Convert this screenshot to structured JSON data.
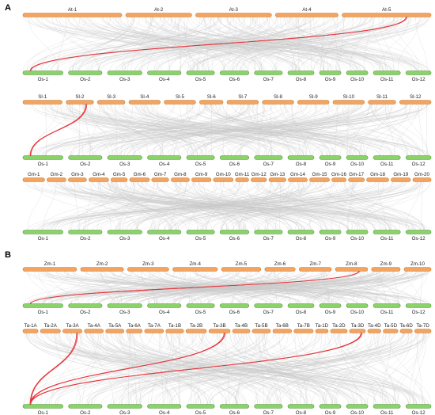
{
  "colors": {
    "query_chromosome": "#F4A460",
    "query_stroke": "#C77A2E",
    "reference_chromosome": "#8CD26A",
    "reference_stroke": "#4E9A32",
    "background_links": "#C8C8C8",
    "highlight_links": "#E8333A"
  },
  "panels": [
    {
      "letter": "A",
      "blocks": [
        {
          "query_genome": "At",
          "query_chromosomes": [
            "At-1",
            "At-2",
            "At-3",
            "At-4",
            "At-5"
          ],
          "reference_chromosomes": [
            "Os-1",
            "Os-2",
            "Os-3",
            "Os-4",
            "Os-5",
            "Os-6",
            "Os-7",
            "Os-8",
            "Os-9",
            "Os-10",
            "Os-11",
            "Os-12"
          ],
          "highlight_links": [
            {
              "from": "At-5",
              "to": "Os-1"
            }
          ]
        },
        {
          "query_genome": "Sl",
          "query_chromosomes": [
            "Sl-1",
            "Sl-2",
            "Sl-3",
            "Sl-4",
            "Sl-5",
            "Sl-6",
            "Sl-7",
            "Sl-8",
            "Sl-9",
            "Sl-10",
            "Sl-11",
            "Sl-12"
          ],
          "reference_chromosomes": [
            "Os-1",
            "Os-2",
            "Os-3",
            "Os-4",
            "Os-5",
            "Os-6",
            "Os-7",
            "Os-8",
            "Os-9",
            "Os-10",
            "Os-11",
            "Os-12"
          ],
          "highlight_links": [
            {
              "from": "Sl-2",
              "to": "Os-1"
            }
          ]
        },
        {
          "query_genome": "Gm",
          "query_chromosomes": [
            "Gm-1",
            "Gm-2",
            "Gm-3",
            "Gm-4",
            "Gm-5",
            "Gm-6",
            "Gm-7",
            "Gm-8",
            "Gm-9",
            "Gm-10",
            "Gm-11",
            "Gm-12",
            "Gm-13",
            "Gm-14",
            "Gm-15",
            "Gm-16",
            "Gm-17",
            "Gm-18",
            "Gm-19",
            "Gm-20"
          ],
          "reference_chromosomes": [
            "Os-1",
            "Os-2",
            "Os-3",
            "Os-4",
            "Os-5",
            "Os-6",
            "Os-7",
            "Os-8",
            "Os-9",
            "Os-10",
            "Os-11",
            "Os-12"
          ],
          "highlight_links": []
        }
      ]
    },
    {
      "letter": "B",
      "blocks": [
        {
          "query_genome": "Zm",
          "query_chromosomes": [
            "Zm-1",
            "Zm-2",
            "Zm-3",
            "Zm-4",
            "Zm-5",
            "Zm-6",
            "Zm-7",
            "Zm-8",
            "Zm-9",
            "Zm-10"
          ],
          "reference_chromosomes": [
            "Os-1",
            "Os-2",
            "Os-3",
            "Os-4",
            "Os-5",
            "Os-6",
            "Os-7",
            "Os-8",
            "Os-9",
            "Os-10",
            "Os-11",
            "Os-12"
          ],
          "highlight_links": [
            {
              "from": "Zm-8",
              "to": "Os-1"
            }
          ]
        },
        {
          "query_genome": "Ta",
          "query_chromosomes": [
            "Ta-1A",
            "Ta-2A",
            "Ta-3A",
            "Ta-4A",
            "Ta-5A",
            "Ta-6A",
            "Ta-7A",
            "Ta-1B",
            "Ta-2B",
            "Ta-3B",
            "Ta-4B",
            "Ta-5B",
            "Ta-6B",
            "Ta-7B",
            "Ta-1D",
            "Ta-2D",
            "Ta-3D",
            "Ta-4D",
            "Ta-5D",
            "Ta-6D",
            "Ta-7D"
          ],
          "reference_chromosomes": [
            "Os-1",
            "Os-2",
            "Os-3",
            "Os-4",
            "Os-5",
            "Os-6",
            "Os-7",
            "Os-8",
            "Os-9",
            "Os-10",
            "Os-11",
            "Os-12"
          ],
          "highlight_links": [
            {
              "from": "Ta-3A",
              "to": "Os-1"
            },
            {
              "from": "Ta-3B",
              "to": "Os-1"
            },
            {
              "from": "Ta-3D",
              "to": "Os-1"
            }
          ]
        }
      ]
    }
  ]
}
